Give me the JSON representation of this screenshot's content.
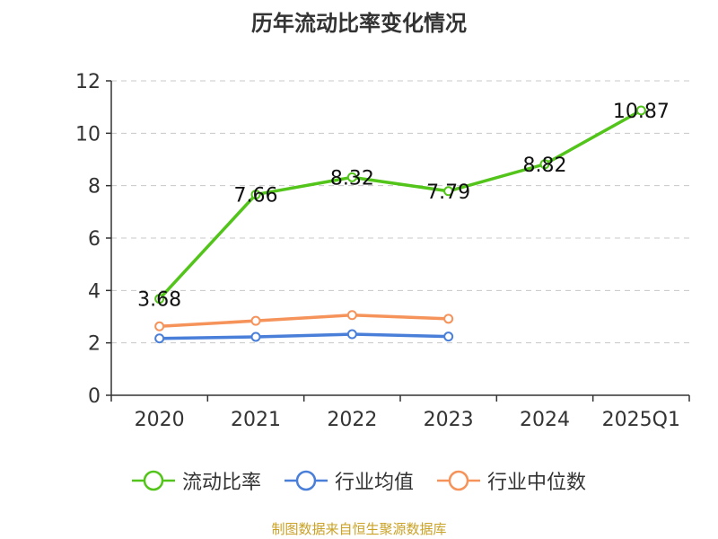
{
  "title": "历年流动比率变化情况",
  "source_text": "制图数据来自恒生聚源数据库",
  "colors": {
    "series_1": "#52c41a",
    "series_2": "#4a7fd9",
    "series_3": "#f5935a",
    "grid": "#c8c8c8",
    "axis": "#333333",
    "text": "#333333",
    "source": "#c9a227"
  },
  "legend": [
    {
      "label": "流动比率",
      "icon": "circle-line-icon",
      "color": "#52c41a"
    },
    {
      "label": "行业均值",
      "icon": "circle-line-icon",
      "color": "#4a7fd9"
    },
    {
      "label": "行业中位数",
      "icon": "circle-line-icon",
      "color": "#f5935a"
    }
  ],
  "chart_data": {
    "type": "line",
    "title": "历年流动比率变化情况",
    "categories": [
      "2020",
      "2021",
      "2022",
      "2023",
      "2024",
      "2025Q1"
    ],
    "ylim": [
      0,
      12
    ],
    "yticks": [
      0,
      2,
      4,
      6,
      8,
      10,
      12
    ],
    "grid": true,
    "legend_position": "bottom",
    "series": [
      {
        "name": "流动比率",
        "values": [
          3.68,
          7.66,
          8.32,
          7.79,
          8.82,
          10.87
        ],
        "data_labels": [
          "3.68",
          "7.66",
          "8.32",
          "7.79",
          "8.82",
          "10.87"
        ],
        "color": "#52c41a"
      },
      {
        "name": "行业均值",
        "values": [
          2.17,
          2.23,
          2.33,
          2.24,
          null,
          null
        ],
        "color": "#4a7fd9"
      },
      {
        "name": "行业中位数",
        "values": [
          2.63,
          2.84,
          3.06,
          2.92,
          null,
          null
        ],
        "color": "#f5935a"
      }
    ]
  }
}
